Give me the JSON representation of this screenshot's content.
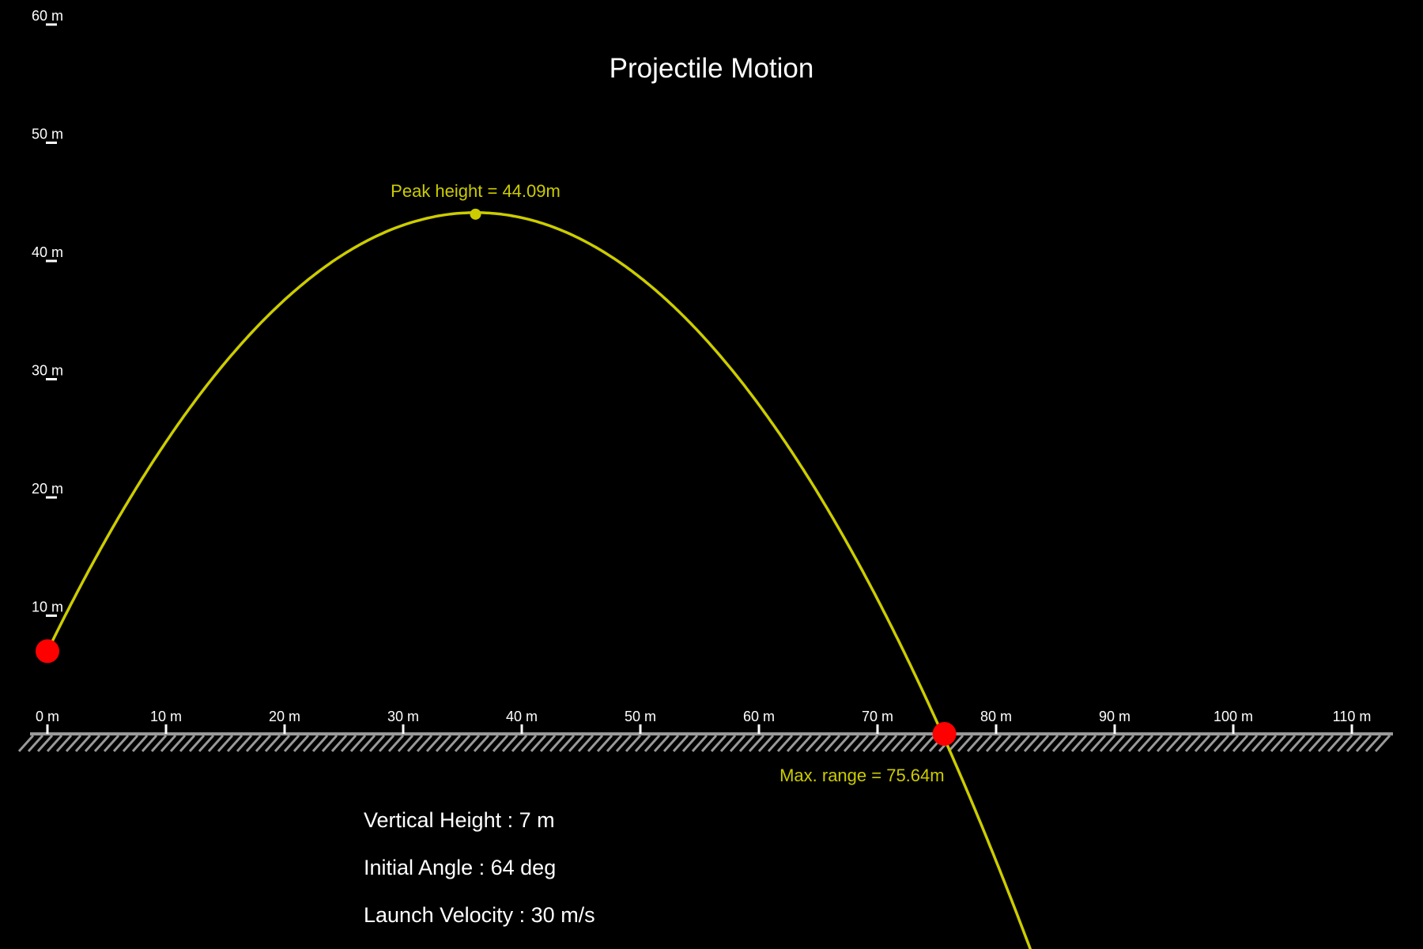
{
  "title": "Projectile Motion",
  "colors": {
    "background": "#000000",
    "trajectory": "#cccc00",
    "marker": "#ff0000",
    "axis_text": "#ffffff",
    "ground": "#999999"
  },
  "chart_data": {
    "type": "line",
    "title": "Projectile Motion",
    "x_unit": "m",
    "y_unit": "m",
    "xlim": [
      0,
      110
    ],
    "ylim": [
      0,
      60
    ],
    "x_ticks": [
      "0 m",
      "10 m",
      "20 m",
      "30 m",
      "40 m",
      "50 m",
      "60 m",
      "70 m",
      "80 m",
      "90 m",
      "100 m",
      "110 m"
    ],
    "y_ticks": [
      "10 m",
      "20 m",
      "30 m",
      "40 m",
      "50 m",
      "60 m"
    ],
    "y_tick_values": [
      10,
      20,
      30,
      40,
      50,
      60
    ],
    "x_tick_values": [
      0,
      10,
      20,
      30,
      40,
      50,
      60,
      70,
      80,
      90,
      100,
      110
    ],
    "launch": {
      "x": 0,
      "y": 7
    },
    "peak": {
      "x": 36.1,
      "y": 44.09
    },
    "landing": {
      "x": 75.64,
      "y": 0
    },
    "peak_label": "Peak height = 44.09m",
    "range_label": "Max. range = 75.64m",
    "grid": false,
    "legend": "none"
  },
  "params": {
    "height_label": "Vertical Height",
    "height_value": "7 m",
    "angle_label": "Initial Angle",
    "angle_value": "64 deg",
    "velocity_label": "Launch Velocity",
    "velocity_value": "30 m/s"
  }
}
